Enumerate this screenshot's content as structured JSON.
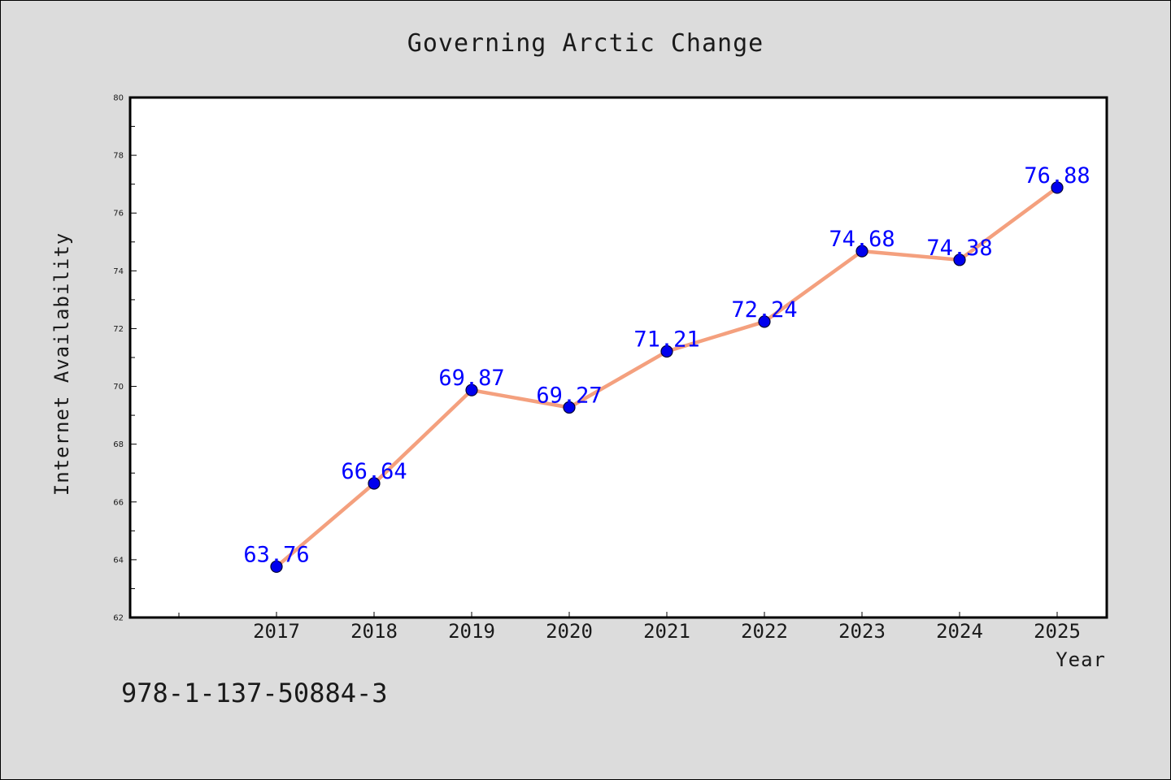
{
  "chart_data": {
    "type": "line",
    "title": "Governing Arctic Change",
    "xlabel": "Year",
    "ylabel": "Internet Availability",
    "x": [
      "2017",
      "2018",
      "2019",
      "2020",
      "2021",
      "2022",
      "2023",
      "2024",
      "2025"
    ],
    "series": [
      {
        "values": [
          63.76,
          66.64,
          69.87,
          69.27,
          71.21,
          72.24,
          74.68,
          74.38,
          76.88
        ],
        "labels": [
          "63.76",
          "66.64",
          "69.87",
          "69.27",
          "71.21",
          "72.24",
          "74.68",
          "74.38",
          "76.88"
        ],
        "line_color": "#f4a07e",
        "marker_color": "#0000ee",
        "label_color": "#0000ff"
      }
    ],
    "ylim": [
      62,
      80
    ],
    "y_ticks": [
      "62",
      "64",
      "66",
      "68",
      "70",
      "72",
      "74",
      "76",
      "78",
      "80"
    ],
    "grid": false,
    "legend": "none"
  },
  "footer": {
    "isbn": "978-1-137-50884-3"
  },
  "colors": {
    "background": "#dcdcdc",
    "plot_background": "#ffffff"
  }
}
